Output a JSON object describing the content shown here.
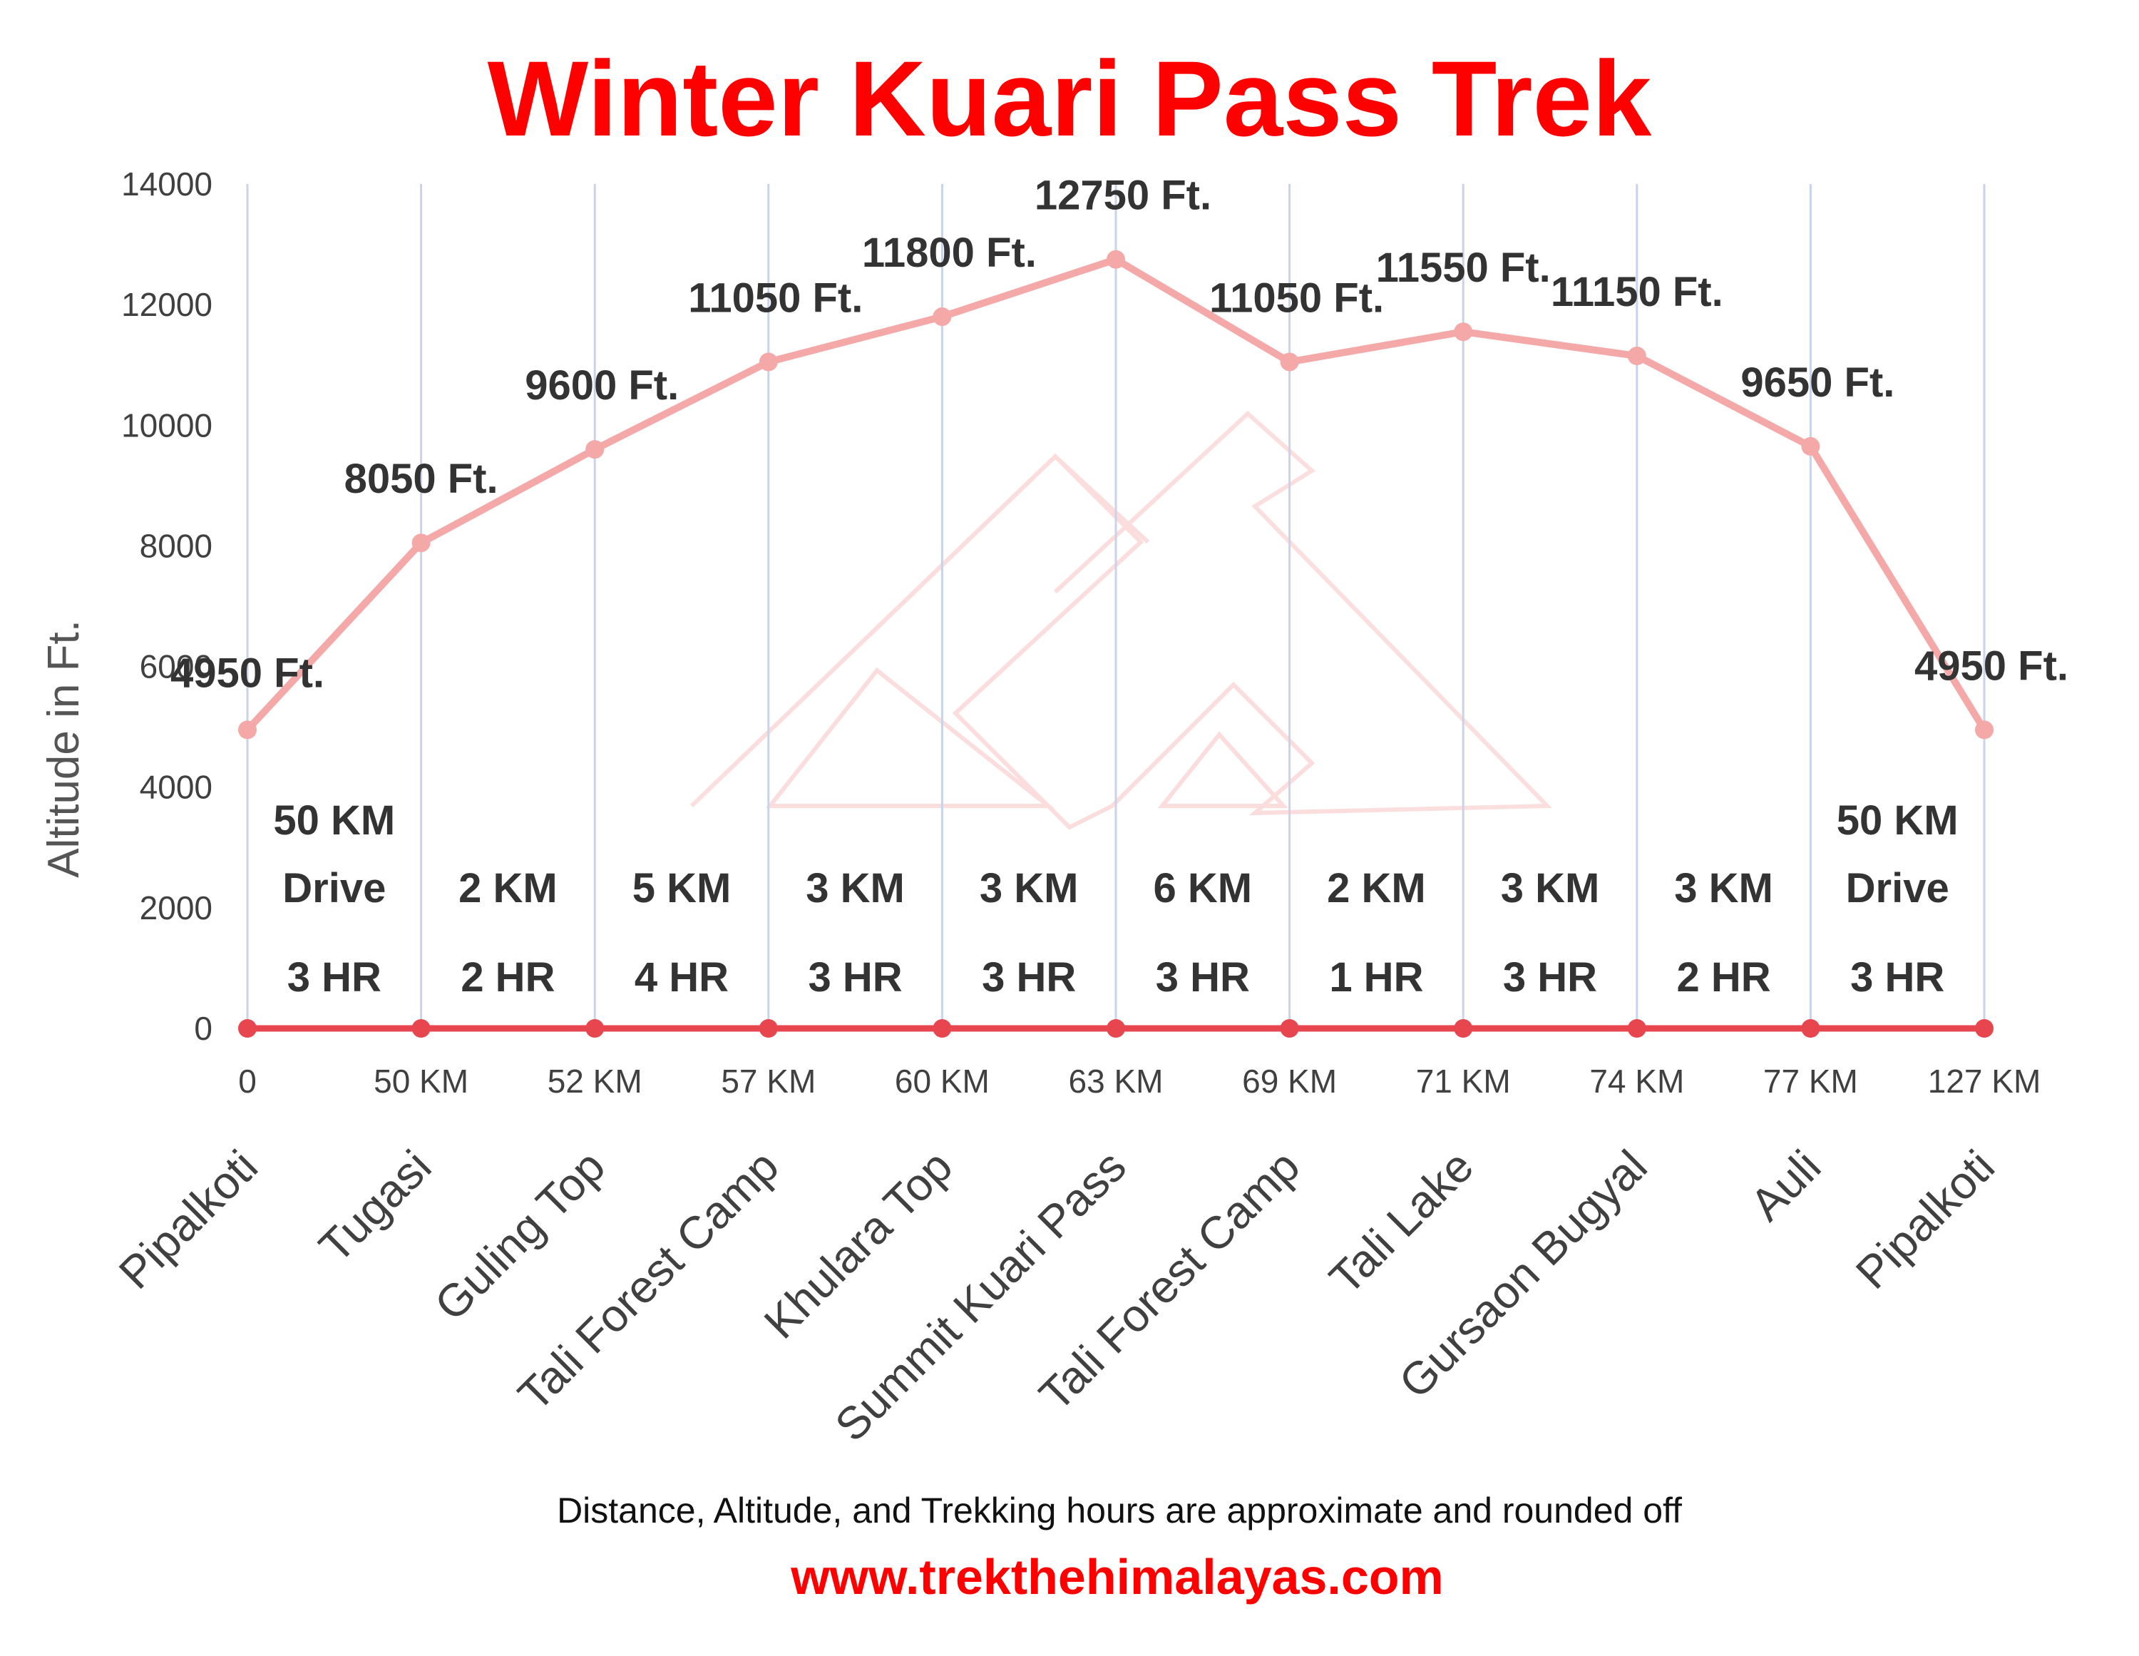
{
  "colors": {
    "title": "#ff0000",
    "altitude_line": "#f4a9a8",
    "distance_line": "#e8464f",
    "gridline": "#c9d3ea",
    "website": "#ff0000",
    "watermark": "#fbdada"
  },
  "chart_data": {
    "type": "line",
    "title": "Winter Kuari Pass Trek",
    "ylabel": "Altitude in Ft.",
    "xlabel": "",
    "ylim": [
      0,
      14000
    ],
    "yticks": [
      "0",
      "2000",
      "4000",
      "6000",
      "8000",
      "10000",
      "12000",
      "14000"
    ],
    "grid": "vertical",
    "categories": [
      "Pipalkoti",
      "Tugasi",
      "Guling Top",
      "Tali Forest Camp",
      "Khulara Top",
      "Summit Kuari Pass",
      "Tali Forest Camp",
      "Tali Lake",
      "Gursaon Bugyal",
      "Auli",
      "Pipalkoti"
    ],
    "distance_ticks": [
      "0",
      "50 KM",
      "52 KM",
      "57 KM",
      "60 KM",
      "63 KM",
      "69 KM",
      "71 KM",
      "74 KM",
      "77 KM",
      "127 KM"
    ],
    "series": [
      {
        "role": "altitude",
        "values": [
          4950,
          8050,
          9600,
          11050,
          11800,
          12750,
          11050,
          11550,
          11150,
          9650,
          4950
        ],
        "labels": [
          "4950 Ft.",
          "8050 Ft.",
          "9600 Ft.",
          "11050 Ft.",
          "11800 Ft.",
          "12750 Ft.",
          "11050 Ft.",
          "11550 Ft.",
          "11150 Ft.",
          "9650 Ft.",
          "4950 Ft."
        ]
      },
      {
        "role": "distance",
        "values": [
          0,
          0,
          0,
          0,
          0,
          0,
          0,
          0,
          0,
          0,
          0
        ]
      }
    ],
    "segments": [
      {
        "distance": "50  KM",
        "mode": "Drive",
        "time": "3 HR"
      },
      {
        "distance": "2 KM",
        "mode": "",
        "time": "2 HR"
      },
      {
        "distance": "5 KM",
        "mode": "",
        "time": "4 HR"
      },
      {
        "distance": "3 KM",
        "mode": "",
        "time": "3 HR"
      },
      {
        "distance": "3 KM",
        "mode": "",
        "time": "3 HR"
      },
      {
        "distance": "6 KM",
        "mode": "",
        "time": "3 HR"
      },
      {
        "distance": "2 KM",
        "mode": "",
        "time": "1 HR"
      },
      {
        "distance": "3 KM",
        "mode": "",
        "time": "3 HR"
      },
      {
        "distance": "3 KM",
        "mode": "",
        "time": "2 HR"
      },
      {
        "distance": "50  KM",
        "mode": "Drive",
        "time": "3 HR"
      }
    ]
  },
  "footer": {
    "note": "Distance, Altitude,  and Trekking hours are approximate and rounded  off",
    "website": "www.trekthehimalayas.com"
  }
}
